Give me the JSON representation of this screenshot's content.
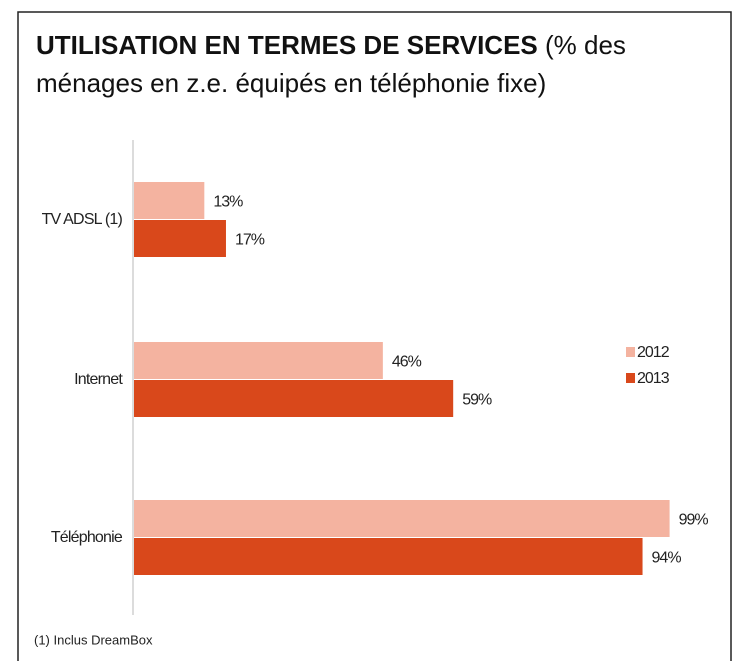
{
  "chart_data": {
    "type": "bar",
    "orientation": "horizontal",
    "title": "UTILISATION EN TERMES DE SERVICES",
    "subtitle": "(% des ménages en z.e. équipés en téléphonie fixe)",
    "categories": [
      "TV ADSL (1)",
      "Internet",
      "Téléphonie"
    ],
    "series": [
      {
        "name": "2012",
        "color": "#f4b3a0",
        "values": [
          13,
          46,
          99
        ],
        "value_labels": [
          "13%",
          "46%",
          "99%"
        ]
      },
      {
        "name": "2013",
        "color": "#d9481b",
        "values": [
          17,
          59,
          94
        ],
        "value_labels": [
          "17%",
          "59%",
          "94%"
        ]
      }
    ],
    "xlim": [
      0,
      100
    ],
    "legend": "right",
    "footnote": "(1) Inclus DreamBox"
  }
}
